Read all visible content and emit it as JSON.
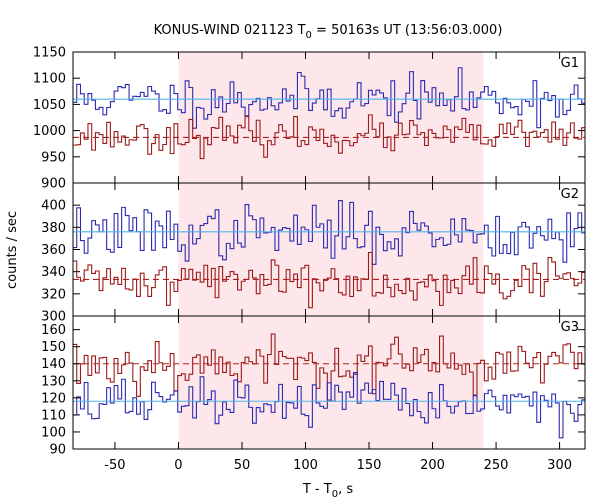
{
  "chart_data": {
    "type": "line",
    "title": {
      "prefix": "KONUS-WIND 021123 T",
      "sub": "0",
      "suffix": " = 50163s UT (13:56:03.000)"
    },
    "xlabel": {
      "prefix": "T - T",
      "sub": "0",
      "suffix": ", s"
    },
    "ylabel": "counts / sec",
    "xlim": [
      -83,
      320
    ],
    "x_ticks": [
      -50,
      0,
      50,
      100,
      150,
      200,
      250,
      300
    ],
    "shaded_interval": {
      "x0": 0,
      "x1": 240,
      "color": "#fde7ea"
    },
    "bin_width": 2.944,
    "panels": [
      {
        "label": "G1",
        "ylim": [
          900,
          1150
        ],
        "y_ticks": [
          900,
          950,
          1000,
          1050,
          1100,
          1150
        ],
        "series": [
          {
            "color": "#2b2bb0",
            "style": "step",
            "seed": 11,
            "mean": 1060,
            "noise": 22,
            "background": {
              "level": 1060,
              "color": "#4fb4ea",
              "style": "solid"
            }
          },
          {
            "color": "#9b1b1b",
            "style": "step",
            "seed": 23,
            "mean": 990,
            "noise": 16,
            "background": {
              "level": 987,
              "color": "#b02020",
              "style": "dashed"
            }
          }
        ]
      },
      {
        "label": "G2",
        "ylim": [
          300,
          420
        ],
        "y_ticks": [
          300,
          320,
          340,
          360,
          380,
          400
        ],
        "series": [
          {
            "color": "#2b2bb0",
            "style": "step",
            "seed": 37,
            "mean": 375,
            "noise": 12,
            "background": {
              "level": 376,
              "color": "#4fb4ea",
              "style": "solid"
            }
          },
          {
            "color": "#9b1b1b",
            "style": "step",
            "seed": 41,
            "mean": 333,
            "noise": 10,
            "background": {
              "level": 333,
              "color": "#b02020",
              "style": "dashed"
            }
          }
        ]
      },
      {
        "label": "G3",
        "ylim": [
          90,
          168
        ],
        "y_ticks": [
          90,
          100,
          110,
          120,
          130,
          140,
          150,
          160
        ],
        "series": [
          {
            "color": "#9b1b1b",
            "style": "step",
            "seed": 53,
            "mean": 140,
            "noise": 8,
            "background": {
              "level": 140,
              "color": "#b02020",
              "style": "dashed"
            }
          },
          {
            "color": "#2b2bb0",
            "style": "step",
            "seed": 67,
            "mean": 117,
            "noise": 7,
            "background": {
              "level": 118,
              "color": "#4fb4ea",
              "style": "solid"
            }
          }
        ]
      }
    ]
  }
}
